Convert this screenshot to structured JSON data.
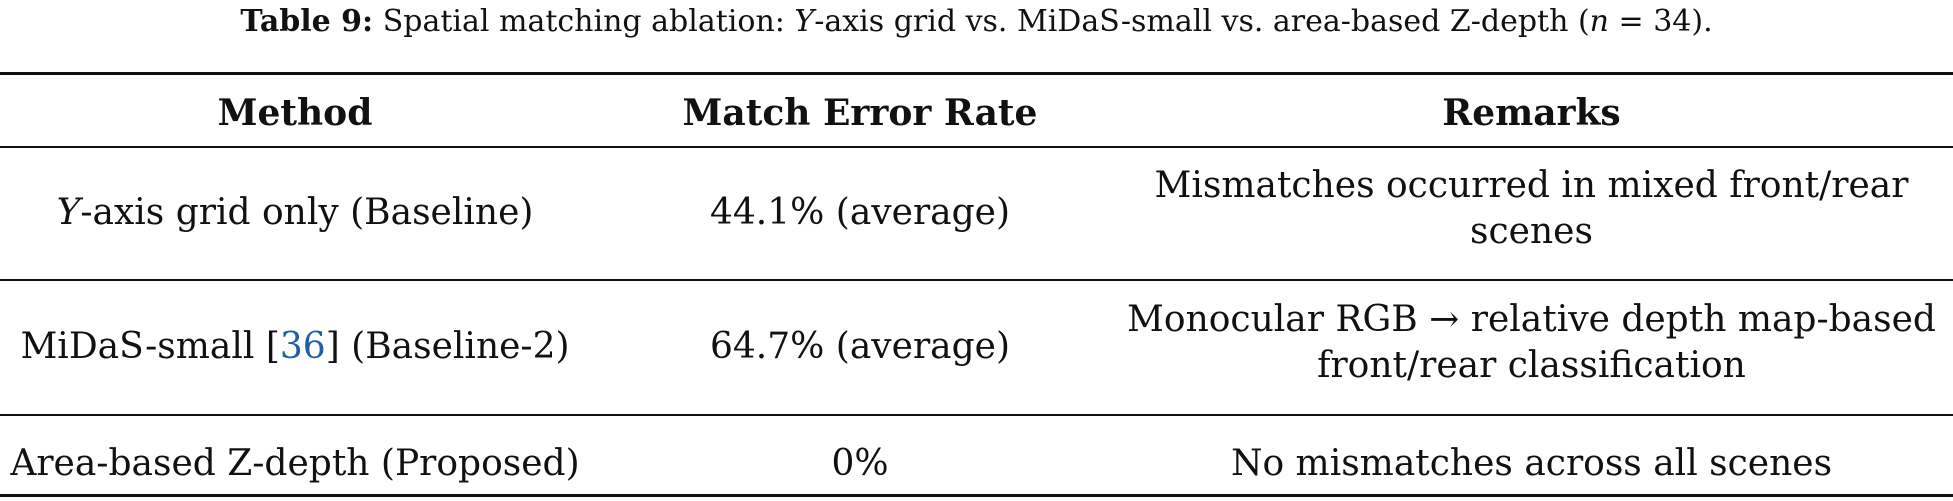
{
  "caption": {
    "label": "Table 9:",
    "text_before": "Spatial matching ablation:",
    "axis_var": "Y",
    "text_middle": "-axis grid vs. MiDaS-small vs. area-based Z-depth (",
    "n_var": "n",
    "text_end": " = 34)."
  },
  "table": {
    "headers": [
      "Method",
      "Match Error Rate",
      "Remarks"
    ],
    "rows": [
      {
        "method_var": "Y",
        "method_rest": "-axis grid only (Baseline)",
        "rate": "44.1% (average)",
        "remarks": [
          "Mismatches occurred in mixed front/rear",
          "scenes"
        ]
      },
      {
        "method_pre": "MiDaS-small [",
        "method_cite": "36",
        "method_post": "] (Baseline-2)",
        "rate": "64.7% (average)",
        "remarks": [
          "Monocular RGB → relative depth map-based",
          "front/rear classification"
        ]
      },
      {
        "method": "Area-based Z-depth (Proposed)",
        "rate": "0%",
        "remarks": [
          "No mismatches across all scenes"
        ]
      }
    ]
  },
  "colors": {
    "text": "#111111",
    "citation_link": "#1f5fa8",
    "rules": "#111111"
  }
}
